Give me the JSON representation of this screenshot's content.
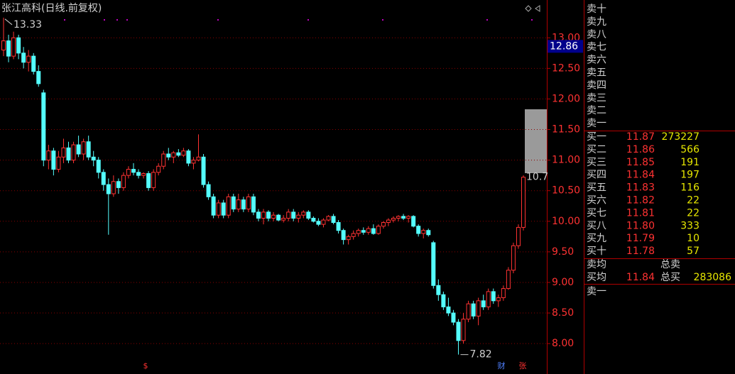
{
  "header": {
    "title": "张江高科(日线.前复权)"
  },
  "chart_data": {
    "type": "candlestick",
    "candles": [
      [
        12.8,
        13.33,
        12.7,
        12.95
      ],
      [
        12.95,
        13.05,
        12.6,
        12.7
      ],
      [
        12.7,
        13.1,
        12.65,
        13.0
      ],
      [
        13.0,
        13.05,
        12.65,
        12.75
      ],
      [
        12.75,
        12.85,
        12.5,
        12.6
      ],
      [
        12.6,
        12.8,
        12.45,
        12.7
      ],
      [
        12.7,
        12.75,
        12.4,
        12.45
      ],
      [
        12.45,
        12.55,
        12.2,
        12.25
      ],
      [
        12.1,
        12.15,
        10.9,
        11.0
      ],
      [
        11.0,
        11.25,
        10.85,
        11.15
      ],
      [
        11.15,
        11.2,
        10.75,
        10.85
      ],
      [
        10.85,
        11.15,
        10.8,
        11.05
      ],
      [
        11.05,
        11.35,
        10.95,
        11.2
      ],
      [
        11.2,
        11.3,
        10.95,
        11.0
      ],
      [
        11.0,
        11.3,
        10.95,
        11.25
      ],
      [
        11.25,
        11.4,
        11.05,
        11.1
      ],
      [
        11.1,
        11.35,
        11.0,
        11.3
      ],
      [
        11.3,
        11.4,
        11.0,
        11.05
      ],
      [
        11.05,
        11.15,
        10.9,
        11.0
      ],
      [
        11.0,
        11.05,
        10.7,
        10.8
      ],
      [
        10.8,
        10.85,
        10.5,
        10.6
      ],
      [
        10.6,
        10.7,
        9.78,
        10.45
      ],
      [
        10.45,
        10.75,
        10.4,
        10.65
      ],
      [
        10.65,
        10.7,
        10.45,
        10.55
      ],
      [
        10.55,
        10.8,
        10.5,
        10.75
      ],
      [
        10.75,
        10.9,
        10.7,
        10.85
      ],
      [
        10.85,
        10.95,
        10.75,
        10.8
      ],
      [
        10.8,
        10.85,
        10.7,
        10.75
      ],
      [
        10.75,
        10.8,
        10.7,
        10.78
      ],
      [
        10.78,
        10.82,
        10.5,
        10.55
      ],
      [
        10.55,
        10.85,
        10.5,
        10.8
      ],
      [
        10.8,
        10.95,
        10.75,
        10.9
      ],
      [
        10.9,
        11.15,
        10.85,
        11.1
      ],
      [
        11.1,
        11.2,
        11.0,
        11.05
      ],
      [
        11.05,
        11.15,
        10.95,
        11.12
      ],
      [
        11.12,
        11.18,
        11.05,
        11.08
      ],
      [
        11.08,
        11.2,
        11.05,
        11.15
      ],
      [
        11.15,
        11.18,
        10.9,
        10.95
      ],
      [
        10.95,
        11.05,
        10.85,
        11.0
      ],
      [
        11.0,
        11.42,
        10.98,
        11.05
      ],
      [
        11.05,
        11.1,
        10.55,
        10.6
      ],
      [
        10.6,
        10.65,
        10.35,
        10.4
      ],
      [
        10.4,
        10.45,
        10.05,
        10.1
      ],
      [
        10.1,
        10.35,
        10.05,
        10.3
      ],
      [
        10.3,
        10.35,
        10.05,
        10.1
      ],
      [
        10.1,
        10.45,
        10.05,
        10.4
      ],
      [
        10.4,
        10.45,
        10.15,
        10.2
      ],
      [
        10.2,
        10.45,
        10.15,
        10.35
      ],
      [
        10.35,
        10.4,
        10.15,
        10.2
      ],
      [
        10.2,
        10.45,
        10.15,
        10.4
      ],
      [
        10.4,
        10.45,
        10.1,
        10.15
      ],
      [
        10.15,
        10.2,
        10.0,
        10.05
      ],
      [
        10.05,
        10.2,
        9.95,
        10.15
      ],
      [
        10.15,
        10.18,
        10.0,
        10.05
      ],
      [
        10.05,
        10.15,
        10.0,
        10.1
      ],
      [
        10.1,
        10.12,
        10.0,
        10.02
      ],
      [
        10.02,
        10.1,
        9.98,
        10.05
      ],
      [
        10.05,
        10.2,
        10.0,
        10.15
      ],
      [
        10.15,
        10.2,
        10.0,
        10.05
      ],
      [
        10.05,
        10.15,
        9.98,
        10.1
      ],
      [
        10.1,
        10.18,
        10.05,
        10.15
      ],
      [
        10.15,
        10.18,
        10.02,
        10.05
      ],
      [
        10.05,
        10.08,
        9.98,
        10.0
      ],
      [
        10.0,
        10.05,
        9.92,
        9.95
      ],
      [
        9.95,
        10.05,
        9.9,
        10.02
      ],
      [
        10.02,
        10.1,
        10.0,
        10.08
      ],
      [
        10.08,
        10.12,
        9.95,
        9.98
      ],
      [
        9.98,
        10.02,
        9.8,
        9.85
      ],
      [
        9.85,
        9.88,
        9.62,
        9.7
      ],
      [
        9.7,
        9.78,
        9.62,
        9.75
      ],
      [
        9.75,
        9.85,
        9.7,
        9.8
      ],
      [
        9.8,
        9.88,
        9.75,
        9.85
      ],
      [
        9.85,
        9.9,
        9.78,
        9.82
      ],
      [
        9.82,
        9.92,
        9.78,
        9.88
      ],
      [
        9.88,
        9.95,
        9.78,
        9.8
      ],
      [
        9.8,
        9.95,
        9.78,
        9.92
      ],
      [
        9.92,
        10.0,
        9.88,
        9.98
      ],
      [
        9.98,
        10.05,
        9.92,
        10.02
      ],
      [
        10.02,
        10.08,
        9.98,
        10.05
      ],
      [
        10.05,
        10.1,
        10.0,
        10.08
      ],
      [
        10.08,
        10.12,
        10.02,
        10.05
      ],
      [
        10.05,
        10.1,
        9.98,
        10.08
      ],
      [
        10.08,
        10.1,
        9.9,
        9.92
      ],
      [
        9.92,
        9.95,
        9.75,
        9.8
      ],
      [
        9.8,
        9.88,
        9.72,
        9.85
      ],
      [
        9.85,
        9.88,
        9.75,
        9.78
      ],
      [
        9.65,
        9.68,
        8.9,
        8.95
      ],
      [
        8.95,
        9.05,
        8.7,
        8.8
      ],
      [
        8.8,
        8.85,
        8.55,
        8.6
      ],
      [
        8.6,
        8.75,
        8.45,
        8.5
      ],
      [
        8.5,
        8.55,
        8.3,
        8.35
      ],
      [
        8.35,
        8.4,
        7.82,
        8.05
      ],
      [
        8.05,
        8.5,
        8.0,
        8.4
      ],
      [
        8.4,
        8.7,
        8.35,
        8.65
      ],
      [
        8.65,
        8.7,
        8.4,
        8.45
      ],
      [
        8.45,
        8.75,
        8.3,
        8.7
      ],
      [
        8.7,
        8.8,
        8.55,
        8.6
      ],
      [
        8.6,
        8.9,
        8.55,
        8.85
      ],
      [
        8.85,
        8.9,
        8.65,
        8.7
      ],
      [
        8.7,
        8.8,
        8.6,
        8.75
      ],
      [
        8.75,
        8.95,
        8.7,
        8.9
      ],
      [
        8.9,
        9.25,
        8.88,
        9.2
      ],
      [
        9.2,
        9.65,
        9.15,
        9.6
      ],
      [
        9.6,
        9.95,
        9.55,
        9.9
      ],
      [
        9.9,
        10.75,
        9.85,
        10.72
      ]
    ],
    "up_color": "#ff3232",
    "down_color": "#54ffff",
    "grid": true,
    "ylim": [
      7.7,
      13.56
    ],
    "yticks": [
      {
        "value": 8,
        "label": "8.00"
      },
      {
        "value": 8.5,
        "label": "8.50"
      },
      {
        "value": 9,
        "label": "9.00"
      },
      {
        "value": 9.5,
        "label": "9.50"
      },
      {
        "value": 10,
        "label": "10.00"
      },
      {
        "value": 10.5,
        "label": "10.50"
      },
      {
        "value": 11,
        "label": "11.00"
      },
      {
        "value": 11.5,
        "label": "11.50"
      },
      {
        "value": 12,
        "label": "12.00"
      },
      {
        "value": 12.5,
        "label": "12.50"
      },
      {
        "value": 13,
        "label": "13.00"
      }
    ],
    "high_label": "13.33",
    "low_label": "7.82",
    "last_label": "10.7",
    "price_tag": {
      "value": 12.86,
      "label": "12.86"
    },
    "markers": [
      "$",
      "财",
      "张"
    ]
  },
  "order_book": {
    "asks": [
      "卖十",
      "卖九",
      "卖八",
      "卖七",
      "卖六",
      "卖五",
      "卖四",
      "卖三",
      "卖二",
      "卖一"
    ],
    "bids": [
      {
        "label": "买一",
        "price": "11.87",
        "volume": "273227"
      },
      {
        "label": "买二",
        "price": "11.86",
        "volume": "566"
      },
      {
        "label": "买三",
        "price": "11.85",
        "volume": "191"
      },
      {
        "label": "买四",
        "price": "11.84",
        "volume": "197"
      },
      {
        "label": "买五",
        "price": "11.83",
        "volume": "116"
      },
      {
        "label": "买六",
        "price": "11.82",
        "volume": "22"
      },
      {
        "label": "买七",
        "price": "11.81",
        "volume": "22"
      },
      {
        "label": "买八",
        "price": "11.80",
        "volume": "333"
      },
      {
        "label": "买九",
        "price": "11.79",
        "volume": "10"
      },
      {
        "label": "买十",
        "price": "11.78",
        "volume": "57"
      }
    ],
    "summary": {
      "ask_avg_label": "卖均",
      "total_ask_label": "总卖",
      "bid_avg_label": "买均",
      "bid_avg": "11.84",
      "total_bid_label": "总买",
      "total_bid": "283086",
      "next_label": "卖一"
    }
  }
}
